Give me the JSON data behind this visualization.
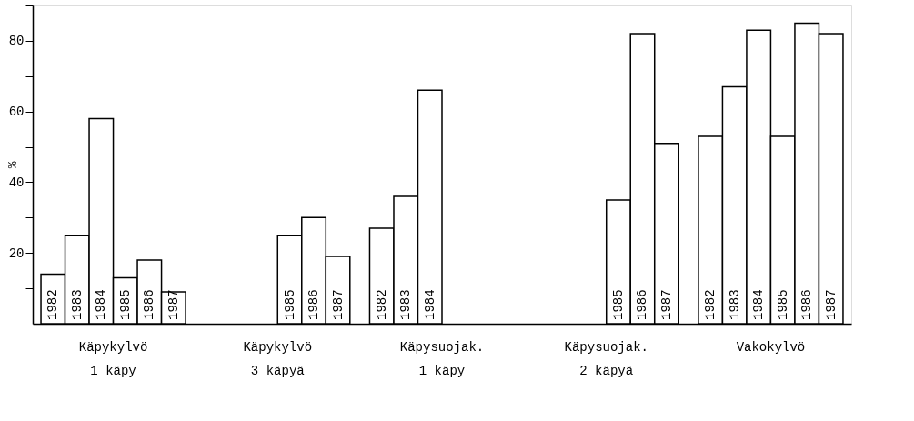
{
  "chart_data": {
    "type": "bar",
    "ylabel": "%",
    "categories": [
      "Käpykylvö\n1 käpy",
      "Käpykylvö\n3 käpyä",
      "Käpysuojak.\n1 käpy",
      "Käpysuojak.\n2 käpyä",
      "Vakokylvö"
    ],
    "series": [
      {
        "name": "1982",
        "color": "#ffffff",
        "values": [
          14,
          null,
          27,
          null,
          53
        ]
      },
      {
        "name": "1983",
        "color": "#ffffff",
        "values": [
          25,
          null,
          36,
          null,
          67
        ]
      },
      {
        "name": "1984",
        "color": "#ffffff",
        "values": [
          58,
          null,
          66,
          null,
          83
        ]
      },
      {
        "name": "1985",
        "color": "#ffffff",
        "values": [
          13,
          25,
          null,
          35,
          53
        ]
      },
      {
        "name": "1986",
        "color": "#ffffff",
        "values": [
          18,
          30,
          null,
          82,
          85
        ]
      },
      {
        "name": "1987",
        "color": "#ffffff",
        "values": [
          9,
          19,
          null,
          51,
          82
        ]
      }
    ],
    "ylim": [
      0,
      90
    ],
    "yticks": [
      {
        "value": 10,
        "label": null
      },
      20,
      {
        "value": 30,
        "label": null
      },
      40,
      {
        "value": 50,
        "label": null
      },
      60,
      {
        "value": 70,
        "label": null
      },
      80,
      {
        "value": 90,
        "label": null
      }
    ],
    "grid": false,
    "legend": false
  }
}
